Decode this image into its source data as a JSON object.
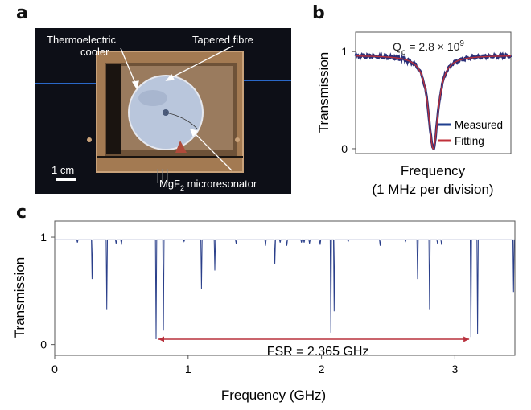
{
  "panels": {
    "a": "a",
    "b": "b",
    "c": "c"
  },
  "photo": {
    "labels": {
      "tec_line1": "Thermoelectric",
      "tec_line2": "cooler",
      "fibre": "Tapered fibre",
      "resonator_prefix": "MgF",
      "resonator_sub": "2",
      "resonator_suffix": " microresonator",
      "scale": "1 cm"
    }
  },
  "chart_data": [
    {
      "type": "line",
      "id": "b",
      "title": "",
      "annotation": {
        "prefix": "Q",
        "sub": "o",
        "mid": " = 2.8 × 10",
        "sup": "9"
      },
      "xlabel": "Frequency",
      "xlabel2": "(1 MHz per division)",
      "ylabel": "Transmission",
      "yticks": [
        "0",
        "1"
      ],
      "ylim": [
        -0.05,
        1.2
      ],
      "xlim": [
        -0.45,
        0.45
      ],
      "model": {
        "baseline": 0.96,
        "depth": 0.96,
        "center": 0,
        "fwhm_mhz": 0.07
      },
      "legend": {
        "position": "bottom-right",
        "entries": [
          {
            "name": "Measured",
            "color": "#1f3f8f"
          },
          {
            "name": "Fitting",
            "color": "#c0303a"
          }
        ]
      },
      "series": [
        {
          "name": "Measured",
          "color": "#2a2f78"
        },
        {
          "name": "Fitting",
          "color": "#b8303c"
        }
      ]
    },
    {
      "type": "line",
      "id": "c",
      "xlabel": "Frequency (GHz)",
      "ylabel": "Transmission",
      "xticks": [
        "0",
        "1",
        "2",
        "3"
      ],
      "yticks": [
        "0",
        "1"
      ],
      "xlim": [
        0,
        3.45
      ],
      "ylim": [
        -0.1,
        1.15
      ],
      "baseline": 0.975,
      "line_color": "#2a3f8a",
      "dips": [
        [
          0.17,
          0.95
        ],
        [
          0.28,
          0.61
        ],
        [
          0.39,
          0.33
        ],
        [
          0.46,
          0.94
        ],
        [
          0.5,
          0.93
        ],
        [
          0.76,
          0.05
        ],
        [
          0.815,
          0.13
        ],
        [
          0.97,
          0.96
        ],
        [
          1.1,
          0.52
        ],
        [
          1.2,
          0.69
        ],
        [
          1.36,
          0.94
        ],
        [
          1.58,
          0.92
        ],
        [
          1.65,
          0.75
        ],
        [
          1.69,
          0.95
        ],
        [
          1.74,
          0.92
        ],
        [
          1.85,
          0.95
        ],
        [
          1.87,
          0.95
        ],
        [
          1.91,
          0.94
        ],
        [
          1.99,
          0.93
        ],
        [
          2.07,
          0.11
        ],
        [
          2.095,
          0.31
        ],
        [
          2.2,
          0.96
        ],
        [
          2.44,
          0.92
        ],
        [
          2.63,
          0.96
        ],
        [
          2.72,
          0.61
        ],
        [
          2.81,
          0.33
        ],
        [
          2.87,
          0.94
        ],
        [
          2.9,
          0.93
        ],
        [
          3.12,
          0.07
        ],
        [
          3.17,
          0.1
        ],
        [
          3.44,
          0.49
        ]
      ],
      "fsr": {
        "label": "FSR = 2.365 GHz",
        "from": 0.76,
        "to": 3.125,
        "color": "#b8303c"
      }
    }
  ]
}
